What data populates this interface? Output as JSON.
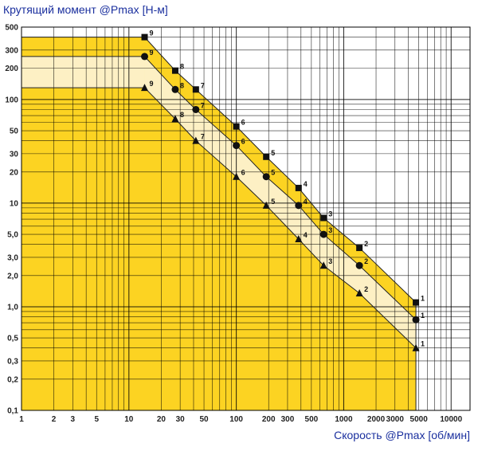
{
  "chart_data": {
    "type": "scatter",
    "ylabel": "Крутящий момент @Pmax [Н-м]",
    "xlabel": "Скорость @Pmax [об/мин]",
    "x_scale": "log",
    "y_scale": "log",
    "xlim": [
      1,
      15000
    ],
    "ylim": [
      0.1,
      500
    ],
    "grid": true,
    "x_ticks": [
      1,
      2,
      3,
      5,
      10,
      20,
      30,
      50,
      100,
      200,
      300,
      500,
      1000,
      2000,
      3000,
      5000,
      10000
    ],
    "x_tick_labels": [
      "1",
      "2",
      "3",
      "5",
      "10",
      "20",
      "30",
      "50",
      "100",
      "200",
      "300",
      "500",
      "1000",
      "2000",
      "3000",
      "5000",
      "10000"
    ],
    "y_ticks": [
      500,
      300,
      200,
      100,
      50,
      30,
      20,
      10,
      5,
      3,
      2,
      1,
      0.5,
      0.3,
      0.2,
      0.1
    ],
    "y_tick_labels": [
      "500",
      "300",
      "200",
      "100",
      "50",
      "30",
      "20",
      "10",
      "5,0",
      "3,0",
      "2,0",
      "1,0",
      "0,5",
      "0,3",
      "0,2",
      "0,1"
    ],
    "colors": {
      "fill": "#fcd322",
      "band_light": "#fdf0c4",
      "axis_text": "#1a2f9e",
      "marker": "#111111"
    },
    "series": [
      {
        "marker": "square",
        "points": [
          {
            "x": 14,
            "y": 400,
            "label": "9"
          },
          {
            "x": 27,
            "y": 190,
            "label": "8"
          },
          {
            "x": 42,
            "y": 125,
            "label": "7"
          },
          {
            "x": 100,
            "y": 55,
            "label": "6"
          },
          {
            "x": 190,
            "y": 28,
            "label": "5"
          },
          {
            "x": 380,
            "y": 14,
            "label": "4"
          },
          {
            "x": 650,
            "y": 7.2,
            "label": "3"
          },
          {
            "x": 1400,
            "y": 3.7,
            "label": "2"
          },
          {
            "x": 4700,
            "y": 1.1,
            "label": "1"
          }
        ]
      },
      {
        "marker": "circle",
        "points": [
          {
            "x": 14,
            "y": 260,
            "label": "9"
          },
          {
            "x": 27,
            "y": 125,
            "label": "8"
          },
          {
            "x": 42,
            "y": 80,
            "label": "7"
          },
          {
            "x": 100,
            "y": 36,
            "label": "6"
          },
          {
            "x": 190,
            "y": 18,
            "label": "5"
          },
          {
            "x": 380,
            "y": 9.5,
            "label": "4"
          },
          {
            "x": 650,
            "y": 5,
            "label": "3"
          },
          {
            "x": 1400,
            "y": 2.5,
            "label": "2"
          },
          {
            "x": 4700,
            "y": 0.75,
            "label": "1"
          }
        ]
      },
      {
        "marker": "triangle",
        "points": [
          {
            "x": 14,
            "y": 130,
            "label": "9"
          },
          {
            "x": 27,
            "y": 65,
            "label": "8"
          },
          {
            "x": 42,
            "y": 40,
            "label": "7"
          },
          {
            "x": 100,
            "y": 18,
            "label": "6"
          },
          {
            "x": 190,
            "y": 9.5,
            "label": "5"
          },
          {
            "x": 380,
            "y": 4.5,
            "label": "4"
          },
          {
            "x": 650,
            "y": 2.5,
            "label": "3"
          },
          {
            "x": 1400,
            "y": 1.35,
            "label": "2"
          },
          {
            "x": 4700,
            "y": 0.4,
            "label": "1"
          }
        ]
      }
    ]
  }
}
